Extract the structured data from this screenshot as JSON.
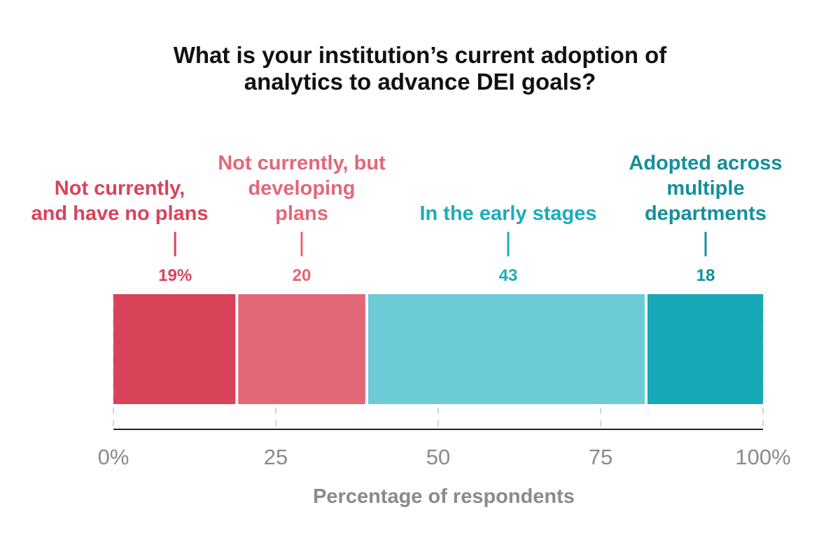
{
  "title_lines": [
    "What is your institution’s current adoption of",
    "analytics to advance DEI goals?"
  ],
  "chart_data": {
    "type": "bar",
    "orientation": "horizontal",
    "stacked": true,
    "xlabel": "Percentage of respondents",
    "ylabel": "",
    "xlim": [
      0,
      100
    ],
    "x_ticks": [
      0,
      25,
      50,
      75,
      100
    ],
    "x_tick_labels": [
      "0%",
      "25",
      "50",
      "75",
      "100%"
    ],
    "grid": true,
    "segments": [
      {
        "label_lines": [
          "Not currently,",
          "and have no plans"
        ],
        "value": 19,
        "value_label": "19%",
        "color": "#d9435a",
        "label_color": "#d9435a"
      },
      {
        "label_lines": [
          "Not currently, but",
          "developing",
          "plans"
        ],
        "value": 20,
        "value_label": "20",
        "color": "#e26878",
        "label_color": "#e26878"
      },
      {
        "label_lines": [
          "In the early stages"
        ],
        "value": 43,
        "value_label": "43",
        "color": "#6ccbd4",
        "label_color": "#1cacb8"
      },
      {
        "label_lines": [
          "Adopted across",
          "multiple",
          "departments"
        ],
        "value": 18,
        "value_label": "18",
        "color": "#17a9b8",
        "label_color": "#138f9c"
      }
    ]
  }
}
